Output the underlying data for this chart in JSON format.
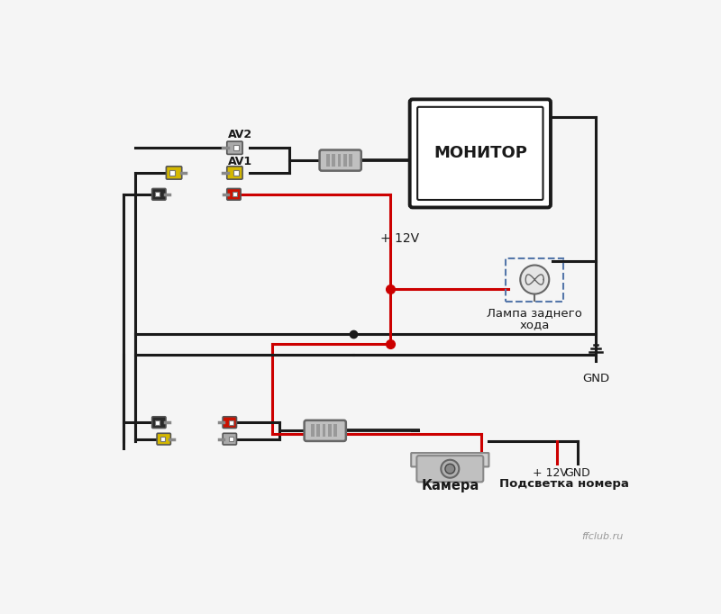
{
  "bg_color": "#f5f5f5",
  "watermark": "ffclub.ru",
  "monitor_label": "МОНИТОР",
  "lamp_label1": "Лампа заднего",
  "lamp_label2": "хода",
  "gnd_label": "GND",
  "camera_label": "Камера",
  "podsvletka_label": "Подсветка номера",
  "plus12v_label1": "+ 12V",
  "plus12v_label2": "+ 12V",
  "av1_label": "AV1",
  "av2_label": "AV2",
  "black": "#1a1a1a",
  "red": "#cc0000",
  "gray": "#aaaaaa",
  "yellow": "#d4b800",
  "dark": "#333333",
  "blue_dash": "#5577aa"
}
